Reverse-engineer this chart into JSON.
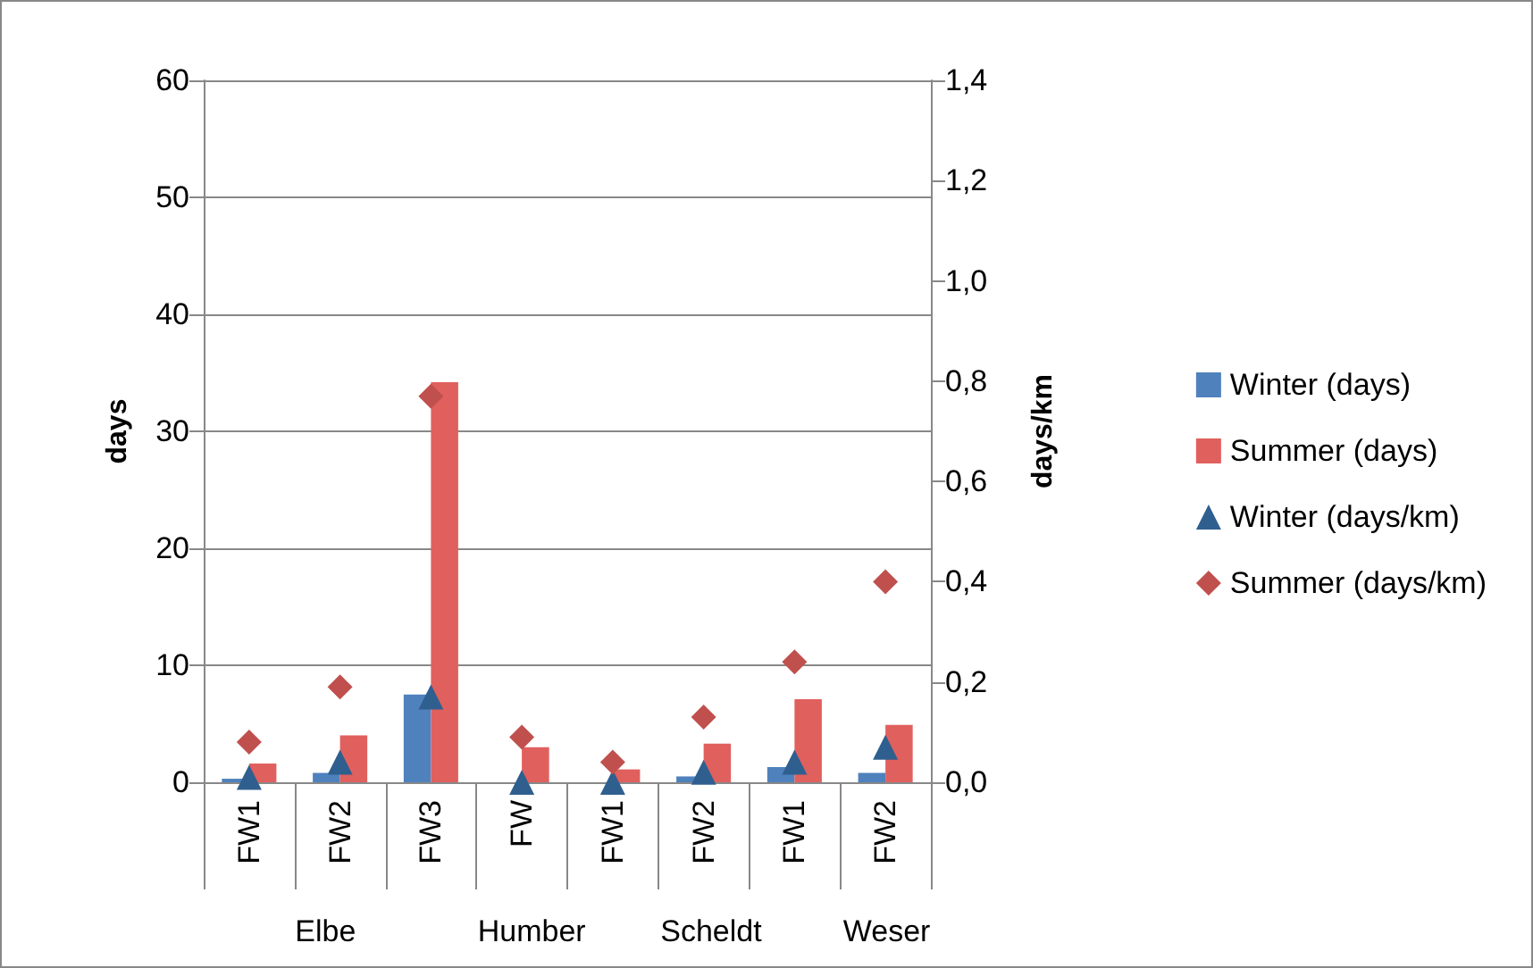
{
  "chart_data": {
    "type": "bar",
    "ylabel": "days",
    "y2label": "days/km",
    "categories": [
      "FW1",
      "FW2",
      "FW3",
      "FW",
      "FW1",
      "FW2",
      "FW1",
      "FW2"
    ],
    "series": [
      {
        "name": "Winter (days)",
        "color": "#4f81bd",
        "values": [
          0.3,
          0.8,
          7.5,
          null,
          null,
          0.5,
          1.3,
          0.8
        ]
      },
      {
        "name": "Summer (days)",
        "color": "#e0605e",
        "values": [
          1.6,
          4.0,
          34.2,
          3.0,
          1.1,
          3.3,
          7.1,
          4.9
        ]
      },
      {
        "name": "Winter (days/km)",
        "type": "scatter",
        "axis": "y2",
        "marker": "triangle",
        "color": "#2f5f8f",
        "values": [
          0.01,
          0.04,
          0.17,
          0.0,
          0.0,
          0.02,
          0.04,
          0.07
        ]
      },
      {
        "name": "Summer (days/km)",
        "type": "scatter",
        "axis": "y2",
        "marker": "diamond",
        "color": "#c0504d",
        "values": [
          0.08,
          0.19,
          0.77,
          0.09,
          0.04,
          0.13,
          0.24,
          0.4
        ]
      }
    ],
    "ylim": [
      0,
      60
    ],
    "yticks": [
      0,
      10,
      20,
      30,
      40,
      50,
      60
    ],
    "y2lim": [
      0,
      1.4
    ],
    "y2ticks": [
      {
        "value": 0,
        "label": "0,0"
      },
      {
        "value": 0.2,
        "label": "0,2"
      },
      {
        "value": 0.4,
        "label": "0,4"
      },
      {
        "value": 0.6,
        "label": "0,6"
      },
      {
        "value": 0.8,
        "label": "0,8"
      },
      {
        "value": 1.0,
        "label": "1,0"
      },
      {
        "value": 1.2,
        "label": "1,2"
      },
      {
        "value": 1.4,
        "label": "1,4"
      }
    ],
    "grid": "y",
    "legend": "right",
    "annotations": [
      "Elbe",
      "Humber",
      "Scheldt",
      "Weser"
    ]
  }
}
